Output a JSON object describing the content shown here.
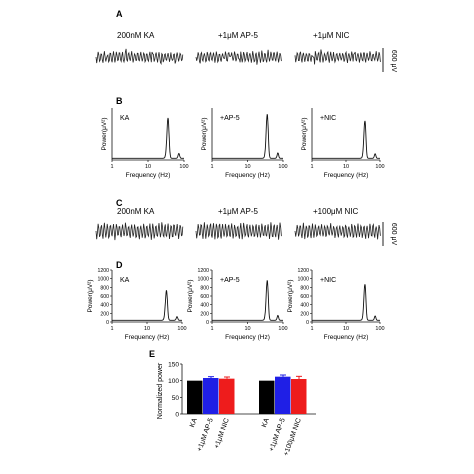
{
  "panels": {
    "A": {
      "letter": "A",
      "trace_labels": [
        "200nM KA",
        "+1μM AP-5",
        "+1μM NIC"
      ],
      "scale_label": "600 μV"
    },
    "B": {
      "letter": "B",
      "ylabel": "Power(μV²)",
      "xlabel": "Frequency (Hz)",
      "xtick_labels": [
        "1",
        "10",
        "100"
      ],
      "plots": [
        {
          "label": "KA",
          "peak": 1.0
        },
        {
          "label": "+AP-5",
          "peak": 1.0
        },
        {
          "label": "+NIC",
          "peak": 1.0
        }
      ]
    },
    "C": {
      "letter": "C",
      "trace_labels": [
        "200nM KA",
        "+1μM AP-5",
        "+100μM NIC"
      ],
      "scale_label": "600 μV"
    },
    "D": {
      "letter": "D",
      "ylabel": "Power(μV²)",
      "xlabel": "Frequency (Hz)",
      "xtick_labels": [
        "1",
        "10",
        "100"
      ],
      "ytick_labels": [
        "0",
        "200",
        "400",
        "600",
        "800",
        "1000",
        "1200"
      ],
      "plots": [
        {
          "label": "KA",
          "peak": 750
        },
        {
          "label": "+AP-5",
          "peak": 1000
        },
        {
          "label": "+NIC",
          "peak": 900
        }
      ]
    },
    "E": {
      "letter": "E",
      "ylabel": "Normalized power",
      "ytick_labels": [
        "0",
        "50",
        "100",
        "150"
      ]
    }
  },
  "colors": {
    "ka": "#000000",
    "ap5": "#1f1fe6",
    "nic": "#ee1c1c",
    "trace": "#222222"
  },
  "chart_data": {
    "type": "bar",
    "ylim": [
      0,
      150
    ],
    "ylabel": "Normalized power",
    "groups": [
      {
        "categories": [
          "KA",
          "+1μM AP-5",
          "+1μM NIC"
        ],
        "values": [
          100,
          108,
          106
        ],
        "errors": [
          0,
          4,
          5
        ]
      },
      {
        "categories": [
          "KA",
          "+1μM AP-5",
          "+100μM NIC"
        ],
        "values": [
          100,
          112,
          105
        ],
        "errors": [
          0,
          5,
          8
        ]
      }
    ]
  }
}
